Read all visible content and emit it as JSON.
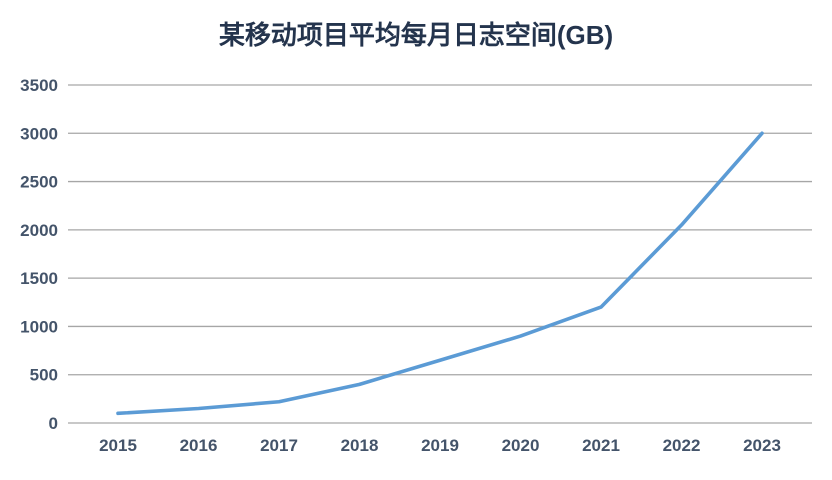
{
  "chart_data": {
    "type": "line",
    "title": "某移动项目平均每月日志空间(GB)",
    "categories": [
      "2015",
      "2016",
      "2017",
      "2018",
      "2019",
      "2020",
      "2021",
      "2022",
      "2023"
    ],
    "series": [
      {
        "name": "平均每月日志空间",
        "values": [
          100,
          150,
          220,
          400,
          650,
          900,
          1200,
          2050,
          3000
        ]
      }
    ],
    "xlabel": "",
    "ylabel": "",
    "ylim": [
      0,
      3500
    ],
    "ytick_interval": 500,
    "ytick_labels": [
      "0",
      "500",
      "1000",
      "1500",
      "2000",
      "2500",
      "3000",
      "3500"
    ],
    "grid": true,
    "legend_position": "none",
    "colors": {
      "line": "#5B9BD5",
      "gridline": "#A6A6A6",
      "title_text": "#24344D",
      "axis_text": "#44546A",
      "background": "#FFFFFF"
    }
  }
}
